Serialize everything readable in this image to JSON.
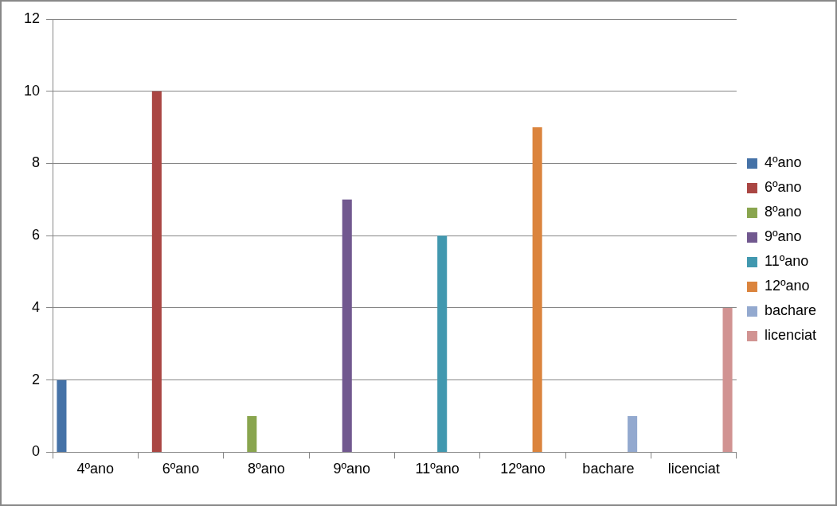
{
  "chart_data": {
    "type": "bar",
    "categories": [
      "4ºano",
      "6ºano",
      "8ºano",
      "9ºano",
      "11ºano",
      "12ºano",
      "bachare",
      "licenciat"
    ],
    "series": [
      {
        "name": "4ºano",
        "color": "#4572a7",
        "values": [
          2,
          null,
          null,
          null,
          null,
          null,
          null,
          null
        ]
      },
      {
        "name": "6ºano",
        "color": "#aa4643",
        "values": [
          null,
          10,
          null,
          null,
          null,
          null,
          null,
          null
        ]
      },
      {
        "name": "8ºano",
        "color": "#89a54e",
        "values": [
          null,
          null,
          1,
          null,
          null,
          null,
          null,
          null
        ]
      },
      {
        "name": "9ºano",
        "color": "#71588f",
        "values": [
          null,
          null,
          null,
          7,
          null,
          null,
          null,
          null
        ]
      },
      {
        "name": "11ºano",
        "color": "#4198af",
        "values": [
          null,
          null,
          null,
          null,
          6,
          null,
          null,
          null
        ]
      },
      {
        "name": "12ºano",
        "color": "#db843d",
        "values": [
          null,
          null,
          null,
          null,
          null,
          9,
          null,
          null
        ]
      },
      {
        "name": "bachare",
        "color": "#93a9cf",
        "values": [
          null,
          null,
          null,
          null,
          null,
          null,
          1,
          null
        ]
      },
      {
        "name": "licenciat",
        "color": "#d19392",
        "values": [
          null,
          null,
          null,
          null,
          null,
          null,
          null,
          4
        ]
      }
    ],
    "ylim": [
      0,
      12
    ],
    "yticks": [
      0,
      2,
      4,
      6,
      8,
      10,
      12
    ],
    "grid": "y",
    "legend": "right"
  }
}
